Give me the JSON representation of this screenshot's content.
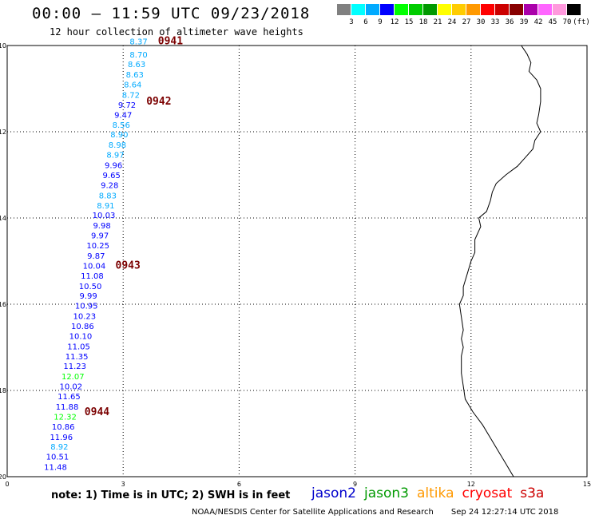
{
  "header": {
    "title": "00:00 – 11:59 UTC 09/23/2018",
    "subtitle": "12 hour collection of altimeter wave heights"
  },
  "color_scale": {
    "colors": [
      "#808080",
      "#00ffff",
      "#00aaff",
      "#0000ff",
      "#00ff00",
      "#00cc00",
      "#009900",
      "#ffff00",
      "#ffcc00",
      "#ff9900",
      "#ff0000",
      "#cc0000",
      "#880000",
      "#aa00aa",
      "#ff66ff",
      "#ff99dd",
      "#000000"
    ],
    "labels": [
      "3",
      "6",
      "9",
      "12",
      "15",
      "18",
      "21",
      "24",
      "27",
      "30",
      "33",
      "36",
      "39",
      "42",
      "45",
      "70",
      "(ft)"
    ]
  },
  "chart_data": {
    "type": "scatter",
    "x_axis": {
      "range": [
        0,
        15
      ],
      "ticks": [
        "0",
        "3",
        "6",
        "9",
        "12",
        "15"
      ]
    },
    "y_axis": {
      "range": [
        -20,
        -10
      ],
      "ticks": [
        "-10",
        "-12",
        "-14",
        "-16",
        "-18",
        "-20"
      ]
    },
    "grid": true,
    "passes": [
      {
        "label": "0941",
        "lon": 3.9,
        "lat": -9.9
      },
      {
        "label": "0942",
        "lon": 3.6,
        "lat": -11.3
      },
      {
        "label": "0943",
        "lon": 2.8,
        "lat": -15.1
      },
      {
        "label": "0944",
        "lon": 2.0,
        "lat": -18.5
      }
    ],
    "observations": [
      {
        "v": "8.37",
        "lon": 3.4,
        "lat": -9.9,
        "c": "#00aaff"
      },
      {
        "v": "8.70",
        "lon": 3.4,
        "lat": -10.2,
        "c": "#00aaff"
      },
      {
        "v": "8.63",
        "lon": 3.35,
        "lat": -10.43,
        "c": "#00aaff"
      },
      {
        "v": "8.63",
        "lon": 3.3,
        "lat": -10.67,
        "c": "#00aaff"
      },
      {
        "v": "8.64",
        "lon": 3.25,
        "lat": -10.9,
        "c": "#00aaff"
      },
      {
        "v": "8.72",
        "lon": 3.2,
        "lat": -11.14,
        "c": "#00aaff"
      },
      {
        "v": "9.72",
        "lon": 3.1,
        "lat": -11.37,
        "c": "#0000ff"
      },
      {
        "v": "9.47",
        "lon": 3.0,
        "lat": -11.6,
        "c": "#0000ff"
      },
      {
        "v": "8.56",
        "lon": 2.95,
        "lat": -11.83,
        "c": "#00aaff"
      },
      {
        "v": "8.90",
        "lon": 2.9,
        "lat": -12.06,
        "c": "#00aaff"
      },
      {
        "v": "8.98",
        "lon": 2.85,
        "lat": -12.3,
        "c": "#00aaff"
      },
      {
        "v": "8.97",
        "lon": 2.8,
        "lat": -12.53,
        "c": "#00aaff"
      },
      {
        "v": "9.96",
        "lon": 2.75,
        "lat": -12.77,
        "c": "#0000ff"
      },
      {
        "v": "9.65",
        "lon": 2.7,
        "lat": -13.0,
        "c": "#0000ff"
      },
      {
        "v": "9.28",
        "lon": 2.65,
        "lat": -13.23,
        "c": "#0000ff"
      },
      {
        "v": "8.83",
        "lon": 2.6,
        "lat": -13.47,
        "c": "#00aaff"
      },
      {
        "v": "8.91",
        "lon": 2.55,
        "lat": -13.7,
        "c": "#00aaff"
      },
      {
        "v": "10.03",
        "lon": 2.5,
        "lat": -13.93,
        "c": "#0000ff"
      },
      {
        "v": "9.98",
        "lon": 2.45,
        "lat": -14.17,
        "c": "#0000ff"
      },
      {
        "v": "9.97",
        "lon": 2.4,
        "lat": -14.4,
        "c": "#0000ff"
      },
      {
        "v": "10.25",
        "lon": 2.35,
        "lat": -14.63,
        "c": "#0000ff"
      },
      {
        "v": "9.87",
        "lon": 2.3,
        "lat": -14.87,
        "c": "#0000ff"
      },
      {
        "v": "10.04",
        "lon": 2.25,
        "lat": -15.1,
        "c": "#0000ff"
      },
      {
        "v": "11.08",
        "lon": 2.2,
        "lat": -15.33,
        "c": "#0000ff"
      },
      {
        "v": "10.50",
        "lon": 2.15,
        "lat": -15.57,
        "c": "#0000ff"
      },
      {
        "v": "9.99",
        "lon": 2.1,
        "lat": -15.8,
        "c": "#0000ff"
      },
      {
        "v": "10.95",
        "lon": 2.05,
        "lat": -16.03,
        "c": "#0000ff"
      },
      {
        "v": "10.23",
        "lon": 2.0,
        "lat": -16.27,
        "c": "#0000ff"
      },
      {
        "v": "10.86",
        "lon": 1.95,
        "lat": -16.5,
        "c": "#0000ff"
      },
      {
        "v": "10.10",
        "lon": 1.9,
        "lat": -16.73,
        "c": "#0000ff"
      },
      {
        "v": "11.05",
        "lon": 1.85,
        "lat": -16.97,
        "c": "#0000ff"
      },
      {
        "v": "11.35",
        "lon": 1.8,
        "lat": -17.2,
        "c": "#0000ff"
      },
      {
        "v": "11.23",
        "lon": 1.75,
        "lat": -17.43,
        "c": "#0000ff"
      },
      {
        "v": "12.07",
        "lon": 1.7,
        "lat": -17.67,
        "c": "#00ff00"
      },
      {
        "v": "10.02",
        "lon": 1.65,
        "lat": -17.9,
        "c": "#0000ff"
      },
      {
        "v": "11.65",
        "lon": 1.6,
        "lat": -18.13,
        "c": "#0000ff"
      },
      {
        "v": "11.88",
        "lon": 1.55,
        "lat": -18.37,
        "c": "#0000ff"
      },
      {
        "v": "12.32",
        "lon": 1.5,
        "lat": -18.6,
        "c": "#00ff00"
      },
      {
        "v": "10.86",
        "lon": 1.45,
        "lat": -18.83,
        "c": "#0000ff"
      },
      {
        "v": "11.96",
        "lon": 1.4,
        "lat": -19.07,
        "c": "#0000ff"
      },
      {
        "v": "8.92",
        "lon": 1.35,
        "lat": -19.3,
        "c": "#00aaff"
      },
      {
        "v": "10.51",
        "lon": 1.3,
        "lat": -19.53,
        "c": "#0000ff"
      },
      {
        "v": "11.48",
        "lon": 1.25,
        "lat": -19.77,
        "c": "#0000ff"
      }
    ],
    "coastline": [
      [
        13.3,
        -10.0
      ],
      [
        13.45,
        -10.2
      ],
      [
        13.55,
        -10.4
      ],
      [
        13.5,
        -10.6
      ],
      [
        13.7,
        -10.8
      ],
      [
        13.8,
        -11.0
      ],
      [
        13.8,
        -11.3
      ],
      [
        13.75,
        -11.6
      ],
      [
        13.7,
        -11.8
      ],
      [
        13.8,
        -12.0
      ],
      [
        13.65,
        -12.2
      ],
      [
        13.6,
        -12.4
      ],
      [
        13.4,
        -12.6
      ],
      [
        13.2,
        -12.8
      ],
      [
        12.9,
        -13.0
      ],
      [
        12.65,
        -13.2
      ],
      [
        12.55,
        -13.4
      ],
      [
        12.5,
        -13.6
      ],
      [
        12.4,
        -13.85
      ],
      [
        12.2,
        -14.0
      ],
      [
        12.25,
        -14.2
      ],
      [
        12.1,
        -14.5
      ],
      [
        12.1,
        -14.8
      ],
      [
        12.0,
        -15.0
      ],
      [
        11.9,
        -15.3
      ],
      [
        11.8,
        -15.6
      ],
      [
        11.8,
        -15.8
      ],
      [
        11.7,
        -16.0
      ],
      [
        11.75,
        -16.3
      ],
      [
        11.8,
        -16.6
      ],
      [
        11.75,
        -16.8
      ],
      [
        11.8,
        -17.0
      ],
      [
        11.75,
        -17.2
      ],
      [
        11.75,
        -17.6
      ],
      [
        11.8,
        -17.9
      ],
      [
        11.85,
        -18.2
      ],
      [
        12.05,
        -18.5
      ],
      [
        12.3,
        -18.8
      ],
      [
        12.5,
        -19.1
      ],
      [
        12.7,
        -19.4
      ],
      [
        12.9,
        -19.7
      ],
      [
        13.1,
        -20.0
      ]
    ]
  },
  "note": "note:  1) Time is in UTC;  2) SWH is in feet",
  "legend": [
    {
      "label": "jason2",
      "color": "#0000cc"
    },
    {
      "label": "jason3",
      "color": "#009900"
    },
    {
      "label": "altika",
      "color": "#ff9900"
    },
    {
      "label": "cryosat",
      "color": "#ff0000"
    },
    {
      "label": "s3a",
      "color": "#cc0000"
    }
  ],
  "footer": {
    "center": "NOAA/NESDIS Center for Satellite Applications and Research",
    "timestamp": "Sep 24 12:27:14 UTC 2018"
  }
}
